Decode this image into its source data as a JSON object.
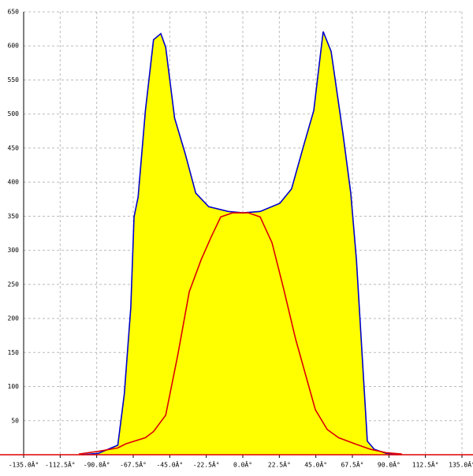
{
  "chart_data": {
    "type": "area",
    "xlim": [
      -135,
      135
    ],
    "ylim": [
      0,
      650
    ],
    "xticks": [
      {
        "value": -135,
        "label": "-135.0Â°"
      },
      {
        "value": -112.5,
        "label": "-112.5Â°"
      },
      {
        "value": -90,
        "label": "-90.0Â°"
      },
      {
        "value": -67.5,
        "label": "-67.5Â°"
      },
      {
        "value": -45,
        "label": "-45.0Â°"
      },
      {
        "value": -22.5,
        "label": "-22.5Â°"
      },
      {
        "value": 0,
        "label": "0.0Â°"
      },
      {
        "value": 22.5,
        "label": "22.5Â°"
      },
      {
        "value": 45,
        "label": "45.0Â°"
      },
      {
        "value": 67.5,
        "label": "67.5Â°"
      },
      {
        "value": 90,
        "label": "90.0Â°"
      },
      {
        "value": 112.5,
        "label": "112.5Â°"
      },
      {
        "value": 135,
        "label": "135.0Â°"
      }
    ],
    "yticks": [
      50,
      100,
      150,
      200,
      250,
      300,
      350,
      400,
      450,
      500,
      550,
      600,
      650
    ],
    "grid": true,
    "series": [
      {
        "color": "#0000cc",
        "fill": "#ffff00",
        "x": [
          -99,
          -89,
          -77,
          -73,
          -69,
          -67,
          -64.5,
          -60,
          -55,
          -50.5,
          -47.5,
          -42,
          -35.5,
          -29,
          -21,
          -9,
          0,
          10.7,
          22.8,
          30,
          37.4,
          43.7,
          49.5,
          54.4,
          61.7,
          66.5,
          70,
          73.8,
          76.7,
          81,
          88.3,
          95.6
        ],
        "values": [
          0,
          2,
          14,
          89,
          216,
          349,
          378,
          505,
          609,
          618,
          598,
          494,
          442,
          384,
          364,
          357,
          355,
          357,
          369,
          390,
          453,
          505,
          621,
          592,
          471,
          384,
          286,
          135,
          20,
          8,
          2,
          0
        ]
      },
      {
        "color": "#dd0000",
        "x": [
          -101,
          -89,
          -77,
          -72,
          -60,
          -55,
          -47.5,
          -40,
          -33,
          -25.7,
          -19.4,
          -13.6,
          -6.3,
          3.4,
          10.7,
          18,
          25,
          32.5,
          40,
          44.7,
          52,
          59,
          69,
          78.6,
          88.3,
          98
        ],
        "values": [
          1,
          5,
          10,
          16,
          25,
          34,
          58,
          147,
          239,
          286,
          320,
          349,
          355,
          355,
          349,
          311,
          245,
          170,
          106,
          66,
          37,
          25,
          16,
          8,
          3,
          1
        ]
      }
    ]
  }
}
